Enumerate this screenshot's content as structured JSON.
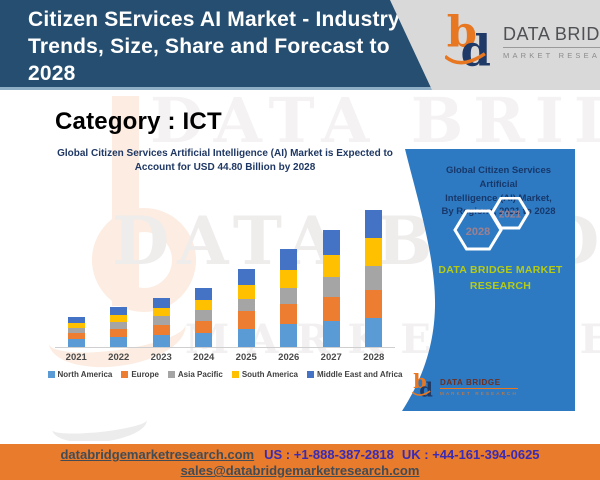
{
  "header": {
    "title": "Citizen SErvices AI Market - Industry Trends, Size, Share and Forecast to 2028",
    "logo": {
      "name": "DATA BRIDGE",
      "tagline": "MARKET RESEARCH"
    }
  },
  "category_label": "Category : ICT",
  "chart_data": {
    "type": "bar",
    "stacked": true,
    "title": "Global Citizen Services Artificial Intelligence (AI) Market is Expected to Account for USD 44.80 Billion by 2028",
    "title_line1": "Global Citizen Services Artificial Intelligence (AI) Market is Expected to",
    "title_line2": "Account for USD 44.80 Billion by 2028",
    "unit": "USD Billion",
    "categories": [
      "2021",
      "2022",
      "2023",
      "2024",
      "2025",
      "2026",
      "2027",
      "2028"
    ],
    "series": [
      {
        "name": "North America",
        "color": "#5b9bd5",
        "values": [
          2.6,
          3.3,
          4.0,
          4.6,
          6.0,
          7.4,
          8.6,
          9.4
        ]
      },
      {
        "name": "Europe",
        "color": "#ed7d31",
        "values": [
          2.0,
          2.7,
          3.3,
          4.0,
          5.8,
          6.6,
          7.7,
          9.2
        ]
      },
      {
        "name": "Asia Pacific",
        "color": "#a5a5a5",
        "values": [
          1.6,
          2.2,
          2.7,
          3.4,
          3.8,
          5.4,
          6.7,
          8.0
        ]
      },
      {
        "name": "South America",
        "color": "#ffc000",
        "values": [
          1.6,
          2.2,
          2.8,
          3.4,
          4.6,
          5.8,
          7.0,
          9.0
        ]
      },
      {
        "name": "Middle East and Africa",
        "color": "#4472c4",
        "values": [
          2.0,
          2.7,
          3.2,
          3.9,
          5.3,
          6.8,
          8.3,
          9.2
        ]
      }
    ],
    "totals": [
      9.8,
      13.1,
      16.0,
      19.3,
      25.5,
      32.0,
      38.3,
      44.8
    ],
    "ylim": [
      0,
      48
    ],
    "grid": false,
    "legend_position": "bottom"
  },
  "region_panel": {
    "title_lines": [
      "Global Citizen Services Artificial",
      "Intelligence (AI) Market,",
      "By Regions, 2021 to 2028"
    ],
    "hexagons": [
      "2028",
      "2021"
    ],
    "brand_text": "DATA BRIDGE MARKET RESEARCH",
    "logo": {
      "name": "DATA BRIDGE",
      "tagline": "MARKET RESEARCH"
    }
  },
  "watermark": {
    "line1": "DATA BRIDGE",
    "line2": "DATA BRIDGE",
    "line3": "MARKET RESEARCH"
  },
  "footer": {
    "website": "databridgemarketresearch.com",
    "us_phone": "US : +1-888-387-2818",
    "uk_phone": "UK : +44-161-394-0625",
    "email": "sales@databridgemarketresearch.com"
  },
  "colors": {
    "header_bg": "#254e70",
    "panel_bg": "#2e7ac2",
    "footer_bg": "#e87b2c",
    "brand_orange": "#e87722",
    "brand_navy": "#1f3a66",
    "panel_green_text": "#b5cb15",
    "chart_title_text": "#1f3864",
    "phone_text": "#3a2bb4"
  }
}
